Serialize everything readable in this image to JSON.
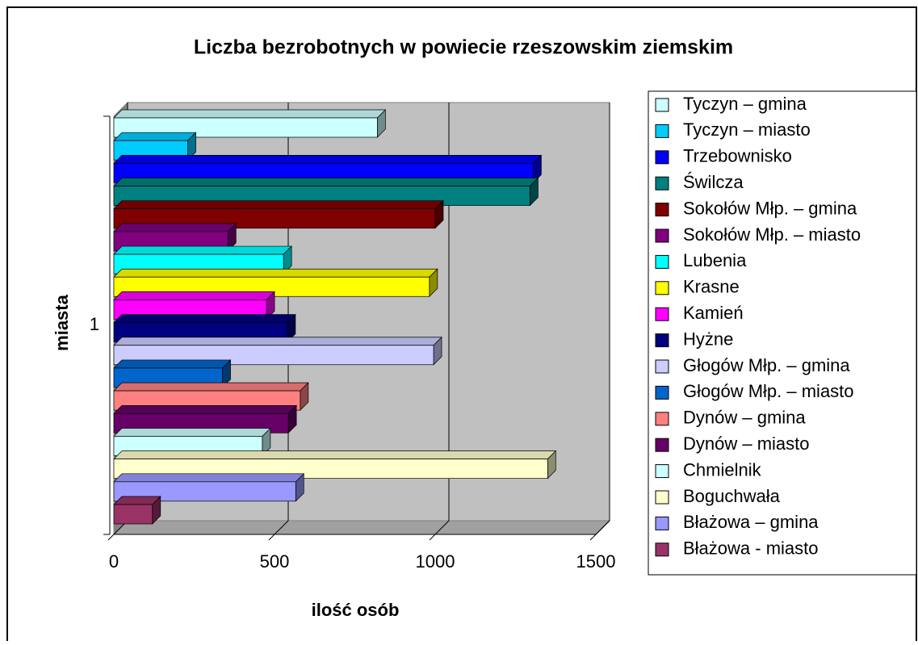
{
  "chart_data": {
    "type": "bar3d_horizontal",
    "title": "Liczba bezrobotnych w powiecie rzeszowskim ziemskim",
    "x_label": "ilość osób",
    "y_label": "miasta",
    "categories": [
      "1"
    ],
    "xlim": [
      0,
      1500
    ],
    "xticks": [
      0,
      500,
      1000,
      1500
    ],
    "grid": true,
    "legend": "right",
    "series": [
      {
        "name": "Tyczyn – gmina",
        "color": "#ccffff",
        "values": [
          820
        ]
      },
      {
        "name": "Tyczyn – miasto",
        "color": "#00ccff",
        "values": [
          230
        ]
      },
      {
        "name": "Trzebownisko",
        "color": "#0000ff",
        "values": [
          1305
        ]
      },
      {
        "name": "Świlcza",
        "color": "#008080",
        "values": [
          1295
        ]
      },
      {
        "name": "Sokołów Młp. – gmina",
        "color": "#800000",
        "values": [
          1000
        ]
      },
      {
        "name": "Sokołów Młp. – miasto",
        "color": "#800080",
        "values": [
          355
        ]
      },
      {
        "name": "Lubenia",
        "color": "#00ffff",
        "values": [
          528
        ]
      },
      {
        "name": "Krasne",
        "color": "#ffff00",
        "values": [
          982
        ]
      },
      {
        "name": "Kamień",
        "color": "#ff00ff",
        "values": [
          475
        ]
      },
      {
        "name": "Hyżne",
        "color": "#000080",
        "values": [
          540
        ]
      },
      {
        "name": "Głogów Młp. – gmina",
        "color": "#ccccff",
        "values": [
          995
        ]
      },
      {
        "name": "Głogów Młp. – miasto",
        "color": "#0066cc",
        "values": [
          338
        ]
      },
      {
        "name": "Dynów – gmina",
        "color": "#ff8080",
        "values": [
          580
        ]
      },
      {
        "name": "Dynów – miasto",
        "color": "#660066",
        "values": [
          543
        ]
      },
      {
        "name": "Chmielnik",
        "color": "#ccffff",
        "values": [
          462
        ]
      },
      {
        "name": "Boguchwała",
        "color": "#ffffcc",
        "values": [
          1350
        ]
      },
      {
        "name": "Błażowa – gmina",
        "color": "#9999ff",
        "values": [
          566
        ]
      },
      {
        "name": "Błażowa - miasto",
        "color": "#993366",
        "values": [
          120
        ]
      }
    ]
  }
}
